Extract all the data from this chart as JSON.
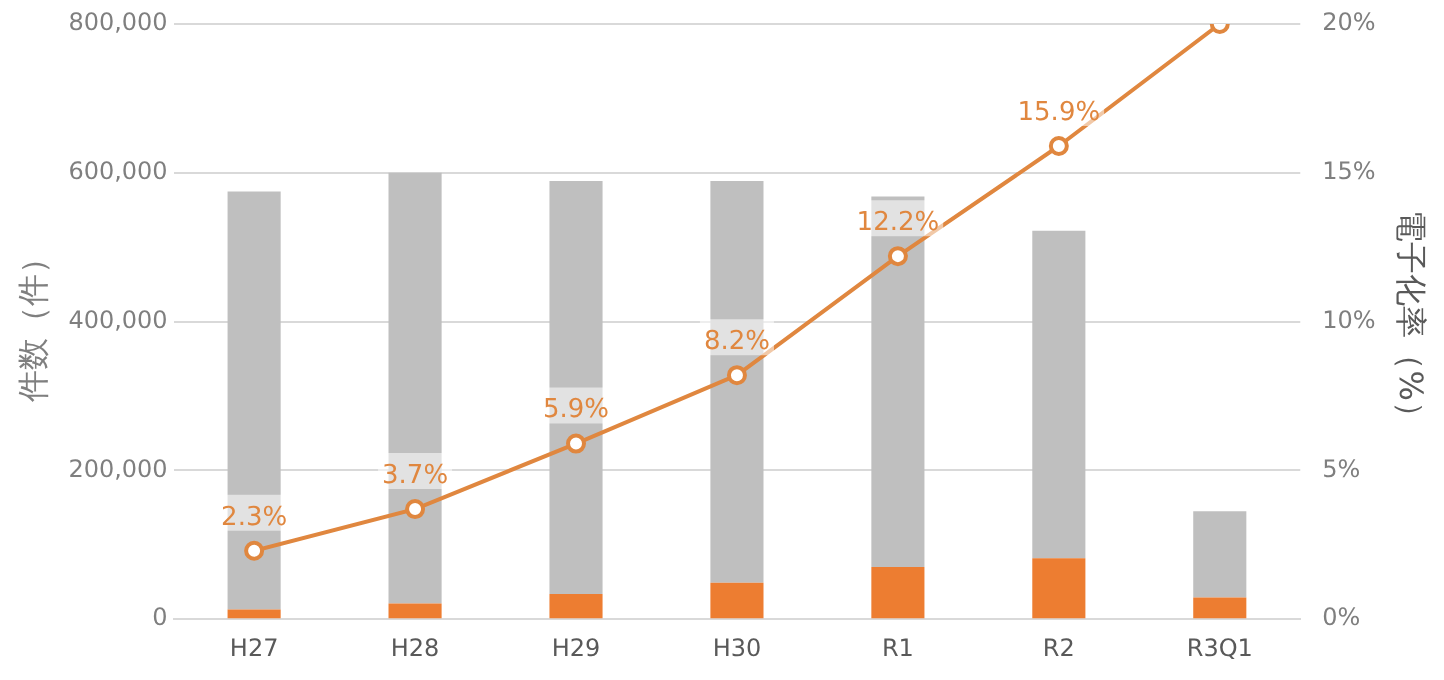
{
  "chart_data": {
    "type": "bar",
    "stacked": true,
    "categories": [
      "H27",
      "H28",
      "H29",
      "H30",
      "R1",
      "R2",
      "R3Q1"
    ],
    "series": [
      {
        "color": "#ed7d31",
        "values": [
          13000,
          21000,
          34000,
          49000,
          70000,
          82000,
          29000
        ]
      },
      {
        "color": "#bfbfbf",
        "values": [
          562000,
          579000,
          555000,
          540000,
          498000,
          440000,
          116000
        ]
      },
      {
        "type": "line",
        "axis": "y2",
        "color": "#e0873f",
        "values": [
          2.3,
          3.7,
          5.9,
          8.2,
          12.2,
          15.9,
          20
        ],
        "value_labels": [
          "2.3%",
          "3.7%",
          "5.9%",
          "8.2%",
          "12.2%",
          "15.9%",
          null
        ]
      }
    ],
    "ylabel": "件数（件）",
    "y2label": "電子化率（%）",
    "ylim": [
      0,
      800000
    ],
    "yticks": [
      {
        "value": 0,
        "label": "0"
      },
      {
        "value": 200000,
        "label": "200,000"
      },
      {
        "value": 400000,
        "label": "400,000"
      },
      {
        "value": 600000,
        "label": "600,000"
      },
      {
        "value": 800000,
        "label": "800,000"
      }
    ],
    "y2lim": [
      0,
      20
    ],
    "y2ticks": [
      {
        "value": 0,
        "label": "0%"
      },
      {
        "value": 5,
        "label": "5%"
      },
      {
        "value": 10,
        "label": "10%"
      },
      {
        "value": 15,
        "label": "15%"
      },
      {
        "value": 20,
        "label": "20%"
      }
    ],
    "grid": "y",
    "legend": false,
    "marker": "circle",
    "line_style": "solid"
  }
}
